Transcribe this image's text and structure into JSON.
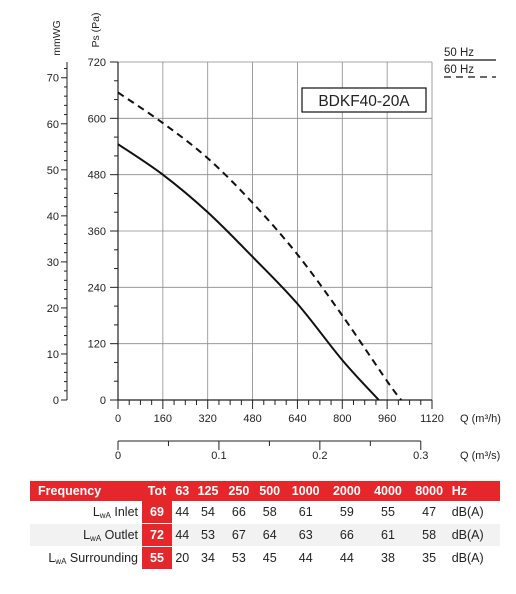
{
  "chart_data": {
    "type": "line",
    "model_label": "BDKF40-20A",
    "y_left_label": "mmWG",
    "y_right_label": "Ps (Pa)",
    "x_label_primary": "Q (m³/h)",
    "x_label_secondary": "Q (m³/s)",
    "x_ticks_primary": [
      "0",
      "160",
      "320",
      "480",
      "640",
      "800",
      "960",
      "1120"
    ],
    "x_ticks_secondary": [
      "0",
      "0.1",
      "0.2",
      "0.3"
    ],
    "y_ticks_pa": [
      "0",
      "120",
      "240",
      "360",
      "480",
      "600",
      "720"
    ],
    "y_ticks_mmwg": [
      "0",
      "10",
      "20",
      "30",
      "40",
      "50",
      "60",
      "70"
    ],
    "xlim": [
      0,
      1120
    ],
    "ylim": [
      0,
      720
    ],
    "grid": true,
    "legend_position": "top-right",
    "series": [
      {
        "name": "50 Hz",
        "style": "solid",
        "x": [
          0,
          160,
          320,
          480,
          640,
          800,
          930
        ],
        "y": [
          545,
          480,
          400,
          305,
          205,
          85,
          0
        ]
      },
      {
        "name": "60 Hz",
        "style": "dashed",
        "x": [
          0,
          160,
          320,
          480,
          640,
          800,
          960,
          1010
        ],
        "y": [
          655,
          590,
          515,
          420,
          310,
          180,
          40,
          0
        ]
      }
    ]
  },
  "noise_table": {
    "header_label": "Frequency",
    "tot_label": "Tot",
    "frequencies": [
      "63",
      "125",
      "250",
      "500",
      "1000",
      "2000",
      "4000",
      "8000"
    ],
    "freq_unit": "Hz",
    "rows": [
      {
        "label_main": "L",
        "label_sub": "wA",
        "label_rest": " Inlet",
        "tot": "69",
        "values": [
          "44",
          "54",
          "66",
          "58",
          "61",
          "59",
          "55",
          "47"
        ],
        "unit": "dB(A)"
      },
      {
        "label_main": "L",
        "label_sub": "wA",
        "label_rest": " Outlet",
        "tot": "72",
        "values": [
          "44",
          "53",
          "67",
          "64",
          "63",
          "66",
          "61",
          "58"
        ],
        "unit": "dB(A)"
      },
      {
        "label_main": "L",
        "label_sub": "wA",
        "label_rest": " Surrounding",
        "tot": "55",
        "values": [
          "20",
          "34",
          "53",
          "45",
          "44",
          "44",
          "38",
          "35"
        ],
        "unit": "dB(A)"
      }
    ]
  }
}
